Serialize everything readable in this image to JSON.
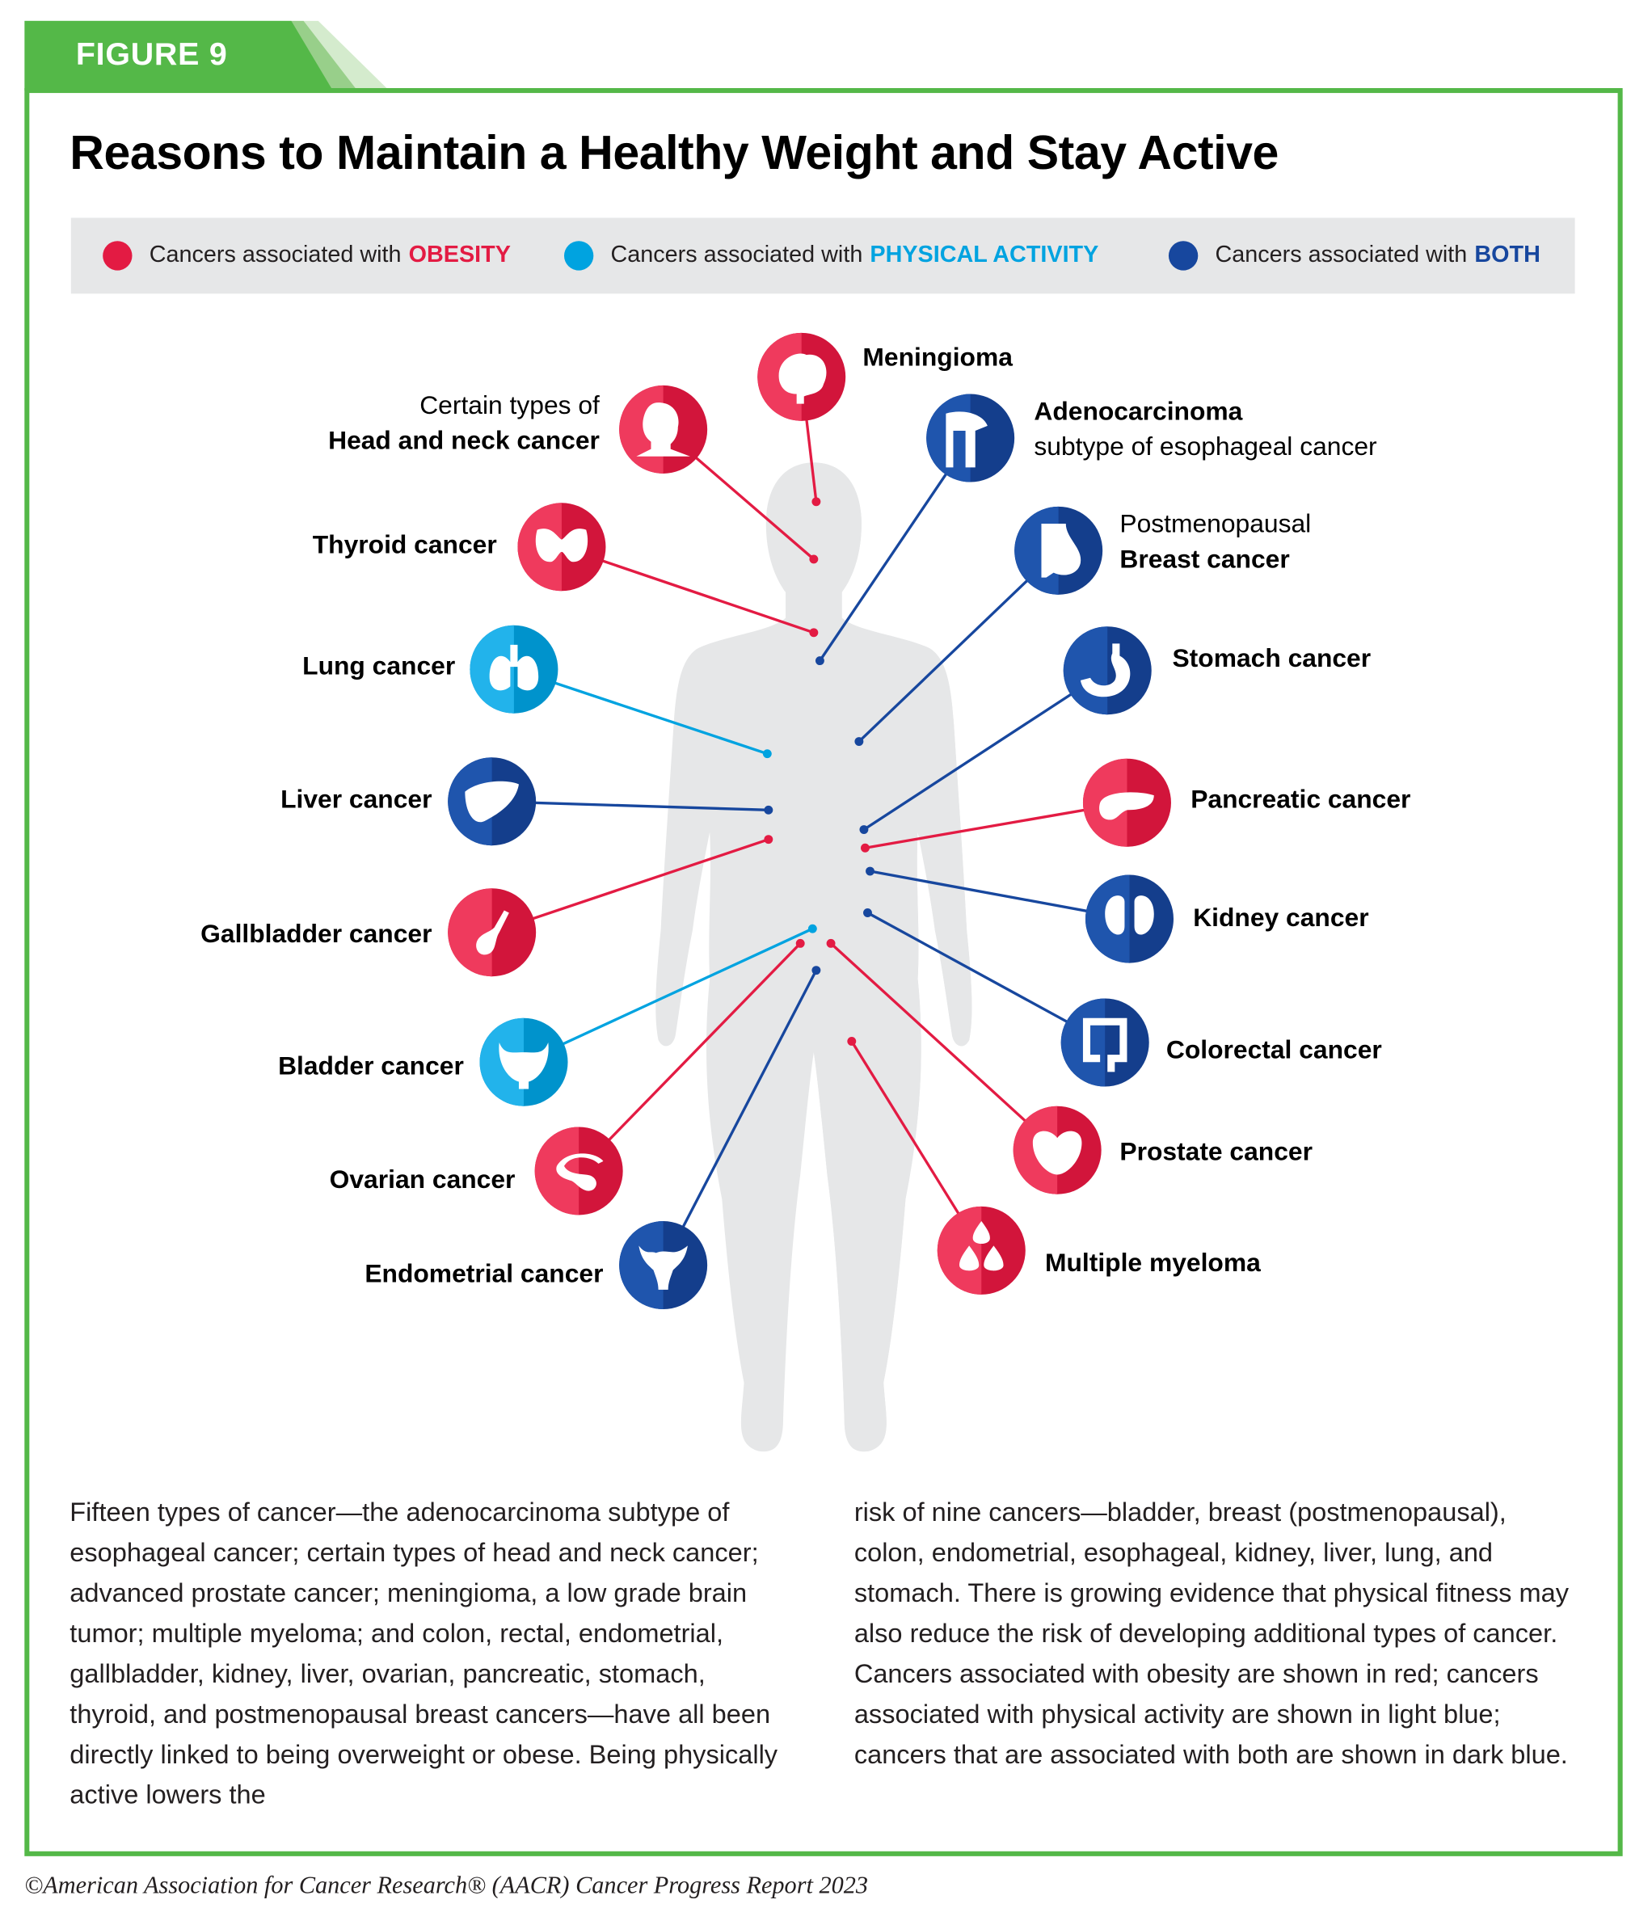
{
  "figure_label": "FIGURE 9",
  "title": "Reasons to Maintain a Healthy Weight and Stay Active",
  "colors": {
    "obesity": "#e31b43",
    "physical_activity": "#00a3e0",
    "both": "#17479e",
    "frame": "#54b848",
    "legend_bg": "#e6e7e8",
    "silhouette": "#e6e7e8"
  },
  "legend": [
    {
      "prefix": "Cancers associated with",
      "keyword": "OBESITY",
      "category": "obesity"
    },
    {
      "prefix": "Cancers associated with",
      "keyword": "PHYSICAL ACTIVITY",
      "category": "physical_activity"
    },
    {
      "prefix": "Cancers associated with",
      "keyword": "BOTH",
      "category": "both"
    }
  ],
  "cancers": [
    {
      "pre": "",
      "name": "Meningioma",
      "post": "",
      "category": "obesity",
      "icon": "brain-icon"
    },
    {
      "pre": "Certain types of",
      "name": "Head and neck cancer",
      "post": "",
      "category": "obesity",
      "icon": "head-icon"
    },
    {
      "pre": "",
      "name": "Thyroid cancer",
      "post": "",
      "category": "obesity",
      "icon": "thyroid-icon"
    },
    {
      "pre": "",
      "name": "Lung cancer",
      "post": "",
      "category": "physical_activity",
      "icon": "lungs-icon"
    },
    {
      "pre": "",
      "name": "Liver cancer",
      "post": "",
      "category": "both",
      "icon": "liver-icon"
    },
    {
      "pre": "",
      "name": "Gallbladder cancer",
      "post": "",
      "category": "obesity",
      "icon": "gallbladder-icon"
    },
    {
      "pre": "",
      "name": "Bladder cancer",
      "post": "",
      "category": "physical_activity",
      "icon": "bladder-icon"
    },
    {
      "pre": "",
      "name": "Ovarian cancer",
      "post": "",
      "category": "obesity",
      "icon": "ovary-icon"
    },
    {
      "pre": "",
      "name": "Endometrial cancer",
      "post": "",
      "category": "both",
      "icon": "uterus-icon"
    },
    {
      "pre": "",
      "name": "Adenocarcinoma",
      "post": "subtype of esophageal cancer",
      "category": "both",
      "icon": "esophagus-icon"
    },
    {
      "pre": "Postmenopausal",
      "name": "Breast cancer",
      "post": "",
      "category": "both",
      "icon": "breast-icon"
    },
    {
      "pre": "",
      "name": "Stomach cancer",
      "post": "",
      "category": "both",
      "icon": "stomach-icon"
    },
    {
      "pre": "",
      "name": "Pancreatic cancer",
      "post": "",
      "category": "obesity",
      "icon": "pancreas-icon"
    },
    {
      "pre": "",
      "name": "Kidney cancer",
      "post": "",
      "category": "both",
      "icon": "kidney-icon"
    },
    {
      "pre": "",
      "name": "Colorectal cancer",
      "post": "",
      "category": "both",
      "icon": "colon-icon"
    },
    {
      "pre": "",
      "name": "Prostate cancer",
      "post": "",
      "category": "obesity",
      "icon": "prostate-icon"
    },
    {
      "pre": "",
      "name": "Multiple myeloma",
      "post": "",
      "category": "obesity",
      "icon": "blood-drops-icon"
    }
  ],
  "body_left": "Fifteen types of cancer—the adenocarcinoma subtype of esophageal cancer; certain types of head and neck cancer; advanced prostate cancer; meningioma, a low grade brain tumor; multiple myeloma; and colon, rectal, endometrial, gallbladder, kidney, liver, ovarian, pancreatic, stomach, thyroid, and postmenopausal breast cancers—have all been directly linked to being overweight or obese. Being physically active lowers the",
  "body_right": "risk of nine cancers—bladder, breast (postmenopausal), colon, endometrial, esophageal, kidney, liver, lung, and stomach. There is growing evidence that physical fitness may also reduce the risk of developing additional types of cancer. Cancers associated with obesity are shown in red; cancers associated with physical activity are shown in light blue; cancers that are associated with both are shown in dark blue.",
  "footer": "©American Association for Cancer Research® (AACR) Cancer Progress Report 2023"
}
